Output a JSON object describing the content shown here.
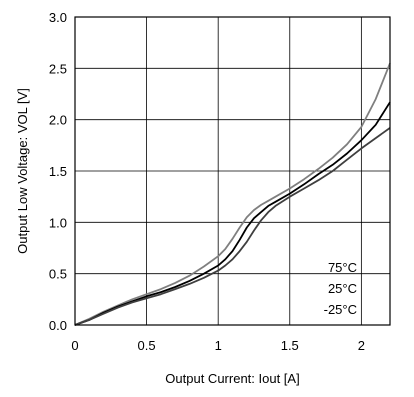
{
  "chart_data": {
    "type": "line",
    "xlabel": "Output Current: Iout [A]",
    "ylabel": "Output Low Voltage: VOL [V]",
    "xlim": [
      0,
      2.2
    ],
    "ylim": [
      0,
      3.0
    ],
    "x_ticks": [
      0,
      0.5,
      1,
      1.5,
      2
    ],
    "x_tick_labels": [
      "0",
      "0.5",
      "1",
      "1.5",
      "2"
    ],
    "y_ticks": [
      0,
      0.5,
      1.0,
      1.5,
      2.0,
      2.5,
      3.0
    ],
    "y_tick_labels": [
      "0.0",
      "0.5",
      "1.0",
      "1.5",
      "2.0",
      "2.5",
      "3.0"
    ],
    "grid": true,
    "series": [
      {
        "name": "75°C",
        "color": "#7f7f7f",
        "points": [
          [
            0,
            0
          ],
          [
            0.1,
            0.06
          ],
          [
            0.2,
            0.13
          ],
          [
            0.3,
            0.19
          ],
          [
            0.4,
            0.25
          ],
          [
            0.5,
            0.3
          ],
          [
            0.6,
            0.35
          ],
          [
            0.7,
            0.41
          ],
          [
            0.8,
            0.48
          ],
          [
            0.9,
            0.57
          ],
          [
            1.0,
            0.67
          ],
          [
            1.05,
            0.74
          ],
          [
            1.1,
            0.84
          ],
          [
            1.15,
            0.95
          ],
          [
            1.2,
            1.05
          ],
          [
            1.25,
            1.12
          ],
          [
            1.3,
            1.17
          ],
          [
            1.35,
            1.21
          ],
          [
            1.4,
            1.25
          ],
          [
            1.5,
            1.33
          ],
          [
            1.6,
            1.42
          ],
          [
            1.7,
            1.52
          ],
          [
            1.8,
            1.63
          ],
          [
            1.9,
            1.76
          ],
          [
            2.0,
            1.93
          ],
          [
            2.1,
            2.2
          ],
          [
            2.2,
            2.55
          ]
        ]
      },
      {
        "name": "25°C",
        "color": "#000000",
        "points": [
          [
            0,
            0
          ],
          [
            0.1,
            0.05
          ],
          [
            0.2,
            0.12
          ],
          [
            0.3,
            0.18
          ],
          [
            0.4,
            0.23
          ],
          [
            0.5,
            0.28
          ],
          [
            0.6,
            0.32
          ],
          [
            0.7,
            0.37
          ],
          [
            0.8,
            0.43
          ],
          [
            0.9,
            0.5
          ],
          [
            1.0,
            0.58
          ],
          [
            1.05,
            0.64
          ],
          [
            1.1,
            0.72
          ],
          [
            1.15,
            0.83
          ],
          [
            1.2,
            0.95
          ],
          [
            1.25,
            1.04
          ],
          [
            1.3,
            1.1
          ],
          [
            1.35,
            1.16
          ],
          [
            1.4,
            1.2
          ],
          [
            1.5,
            1.28
          ],
          [
            1.6,
            1.37
          ],
          [
            1.7,
            1.47
          ],
          [
            1.8,
            1.56
          ],
          [
            1.9,
            1.67
          ],
          [
            2.0,
            1.8
          ],
          [
            2.1,
            1.95
          ],
          [
            2.2,
            2.17
          ]
        ]
      },
      {
        "name": "-25°C",
        "color": "#3f3f3f",
        "points": [
          [
            0,
            0
          ],
          [
            0.1,
            0.05
          ],
          [
            0.2,
            0.11
          ],
          [
            0.3,
            0.17
          ],
          [
            0.4,
            0.22
          ],
          [
            0.5,
            0.26
          ],
          [
            0.6,
            0.3
          ],
          [
            0.7,
            0.35
          ],
          [
            0.8,
            0.4
          ],
          [
            0.9,
            0.46
          ],
          [
            1.0,
            0.53
          ],
          [
            1.05,
            0.58
          ],
          [
            1.1,
            0.64
          ],
          [
            1.15,
            0.72
          ],
          [
            1.2,
            0.81
          ],
          [
            1.25,
            0.92
          ],
          [
            1.3,
            1.02
          ],
          [
            1.35,
            1.1
          ],
          [
            1.4,
            1.16
          ],
          [
            1.5,
            1.25
          ],
          [
            1.6,
            1.33
          ],
          [
            1.7,
            1.41
          ],
          [
            1.8,
            1.5
          ],
          [
            1.9,
            1.61
          ],
          [
            2.0,
            1.72
          ],
          [
            2.1,
            1.82
          ],
          [
            2.2,
            1.92
          ]
        ]
      }
    ],
    "legend_labels": [
      "75°C",
      "25°C",
      "-25°C"
    ],
    "legend_position": "bottom-right"
  }
}
